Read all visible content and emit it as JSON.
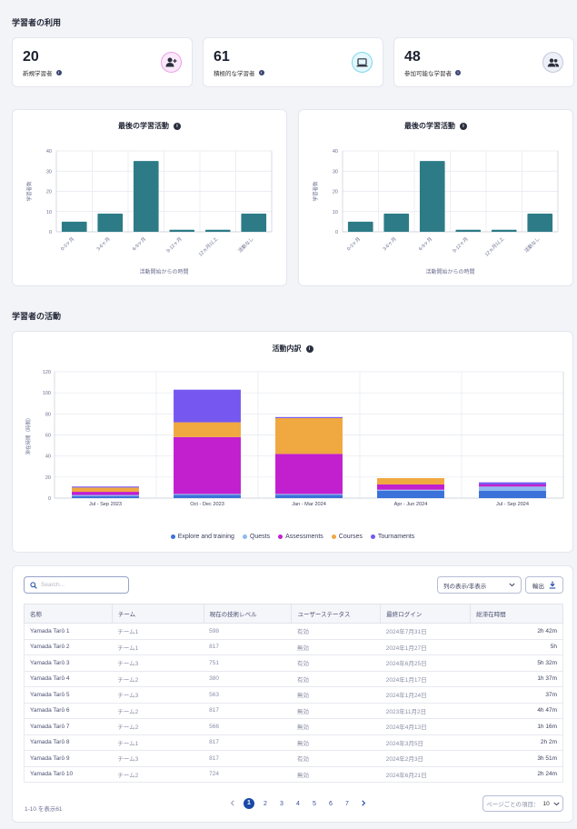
{
  "sections": {
    "usage": "学習者の利用",
    "activity": "学習者の活動"
  },
  "stats": [
    {
      "value": "20",
      "label": "新規学習者",
      "icon": "user-plus-icon",
      "ring": "#e9a2e6",
      "fill": "#fbe8fb"
    },
    {
      "value": "61",
      "label": "積極的な学習者",
      "icon": "laptop-icon",
      "ring": "#7fd7ea",
      "fill": "#e3f7fc"
    },
    {
      "value": "48",
      "label": "参加可能な学習者",
      "icon": "users-icon",
      "ring": "#c3c8dc",
      "fill": "#eef0f7"
    }
  ],
  "charts": {
    "last_activity_title": "最後の学習活動"
  },
  "chart_data": [
    {
      "type": "bar",
      "title": "最後の学習活動",
      "categories": [
        "0-3ヶ月",
        "3-6ヶ月",
        "6-9ヶ月",
        "9-12ヶ月",
        "12ヵ月以上",
        "活動なし"
      ],
      "values": [
        5,
        9,
        35,
        1,
        1,
        9
      ],
      "xlabel": "活動開始からの時間",
      "ylabel": "学習者数",
      "ylim": [
        0,
        40
      ],
      "yticks": [
        "0",
        "10",
        "20",
        "30",
        "40"
      ],
      "color": "#2d7b87"
    },
    {
      "type": "bar",
      "title": "最後の学習活動",
      "categories": [
        "0-3ヶ月",
        "3-6ヶ月",
        "6-9ヶ月",
        "9-12ヶ月",
        "12ヵ月以上",
        "活動なし"
      ],
      "values": [
        5,
        9,
        35,
        1,
        1,
        9
      ],
      "xlabel": "活動開始からの時間",
      "ylabel": "学習者数",
      "ylim": [
        0,
        40
      ],
      "yticks": [
        "0",
        "10",
        "20",
        "30",
        "40"
      ],
      "color": "#2d7b87"
    },
    {
      "type": "bar",
      "stacked": true,
      "title": "活動内訳",
      "categories": [
        "Jul - Sep 2023",
        "Oct - Dec 2023",
        "Jan - Mar 2024",
        "Apr - Jun 2024",
        "Jul - Sep 2024"
      ],
      "ylabel": "滞在時間（時間）",
      "ylim": [
        0,
        120
      ],
      "yticks": [
        "0",
        "20",
        "40",
        "60",
        "80",
        "100",
        "120"
      ],
      "series": [
        {
          "name": "Explore and training",
          "color": "#3b72d9",
          "values": [
            2,
            3,
            3,
            7,
            7
          ]
        },
        {
          "name": "Quests",
          "color": "#8fb9ef",
          "values": [
            1,
            1,
            1,
            1,
            4
          ]
        },
        {
          "name": "Assessments",
          "color": "#c21fcf",
          "values": [
            3,
            54,
            38,
            5,
            2
          ]
        },
        {
          "name": "Courses",
          "color": "#f0a840",
          "values": [
            4,
            14,
            34,
            6,
            0
          ]
        },
        {
          "name": "Tournaments",
          "color": "#7658f0",
          "values": [
            1,
            31,
            1,
            0,
            2
          ]
        }
      ],
      "legend_position": "bottom",
      "grid": true
    }
  ],
  "table": {
    "search_placeholder": "Search...",
    "columns_button": "列の表示/非表示",
    "export_button": "輸出",
    "headers": [
      "名称",
      "チーム",
      "現在の技術レベル",
      "ユーザーステータス",
      "最終ログイン",
      "総滞在時間"
    ],
    "rows": [
      [
        "Yamada Tarō 1",
        "チーム1",
        "598",
        "有効",
        "2024年7月31日",
        "2h 42m"
      ],
      [
        "Yamada Tarō 2",
        "チーム1",
        "817",
        "無効",
        "2024年1月27日",
        "5h"
      ],
      [
        "Yamada Tarō 3",
        "チーム3",
        "751",
        "有効",
        "2024年6月25日",
        "5h 32m"
      ],
      [
        "Yamada Tarō 4",
        "チーム2",
        "380",
        "有効",
        "2024年1月17日",
        "1h 37m"
      ],
      [
        "Yamada Tarō 5",
        "チーム3",
        "563",
        "無効",
        "2024年1月24日",
        "37m"
      ],
      [
        "Yamada Tarō 6",
        "チーム2",
        "817",
        "無効",
        "2023年11月2日",
        "4h 47m"
      ],
      [
        "Yamada Tarō 7",
        "チーム2",
        "566",
        "無効",
        "2024年4月13日",
        "1h 16m"
      ],
      [
        "Yamada Tarō 8",
        "チーム1",
        "817",
        "無効",
        "2024年3月5日",
        "2h 2m"
      ],
      [
        "Yamada Tarō 9",
        "チーム3",
        "817",
        "有効",
        "2024年2月3日",
        "3h 51m"
      ],
      [
        "Yamada Tarō 10",
        "チーム2",
        "724",
        "無効",
        "2024年6月21日",
        "2h 24m"
      ]
    ],
    "count_text": "1-10 を表示61",
    "pages": [
      "1",
      "2",
      "3",
      "4",
      "5",
      "6",
      "7"
    ],
    "current_page": "1",
    "per_page_label": "ページごとの項目：",
    "per_page_value": "10"
  }
}
